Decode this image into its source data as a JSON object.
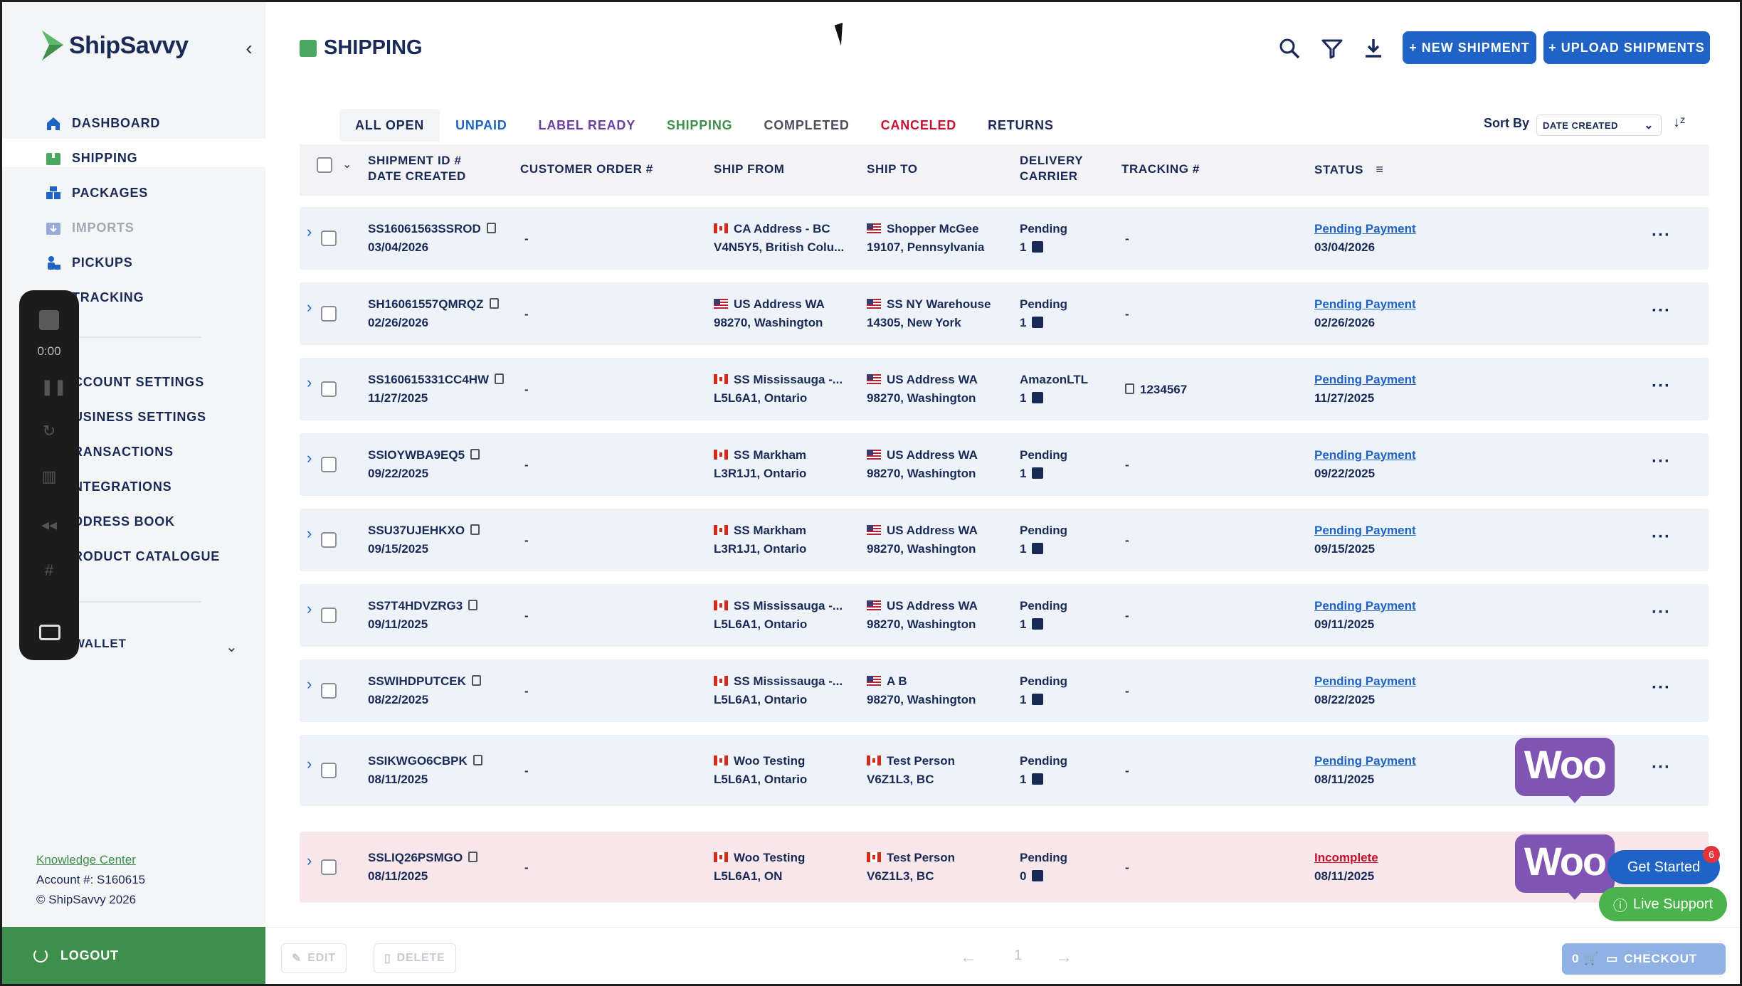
{
  "brand": {
    "name": "ShipSavvy"
  },
  "sidebar": {
    "collapse_icon": "chevron-left-icon",
    "items": [
      {
        "label": "DASHBOARD",
        "icon": "home-icon"
      },
      {
        "label": "SHIPPING",
        "icon": "box-icon"
      },
      {
        "label": "PACKAGES",
        "icon": "packages-icon"
      },
      {
        "label": "IMPORTS",
        "icon": "import-icon"
      },
      {
        "label": "PICKUPS",
        "icon": "pickup-icon"
      },
      {
        "label": "TRACKING",
        "icon": "tracking-icon"
      }
    ],
    "settings": [
      {
        "label": "CCOUNT SETTINGS"
      },
      {
        "label": "USINESS SETTINGS"
      },
      {
        "label": "RANSACTIONS"
      },
      {
        "label": "NTEGRATIONS"
      },
      {
        "label": "DDRESS BOOK"
      },
      {
        "label": "RODUCT CATALOGUE"
      }
    ],
    "wallet": "WALLET",
    "knowledge_center": "Knowledge Center",
    "account": "Account #: S160615",
    "copyright": "© ShipSavvy 2026",
    "logout": "LOGOUT"
  },
  "recorder": {
    "time": "0:00"
  },
  "header": {
    "title": "SHIPPING",
    "new_shipment": "+ NEW SHIPMENT",
    "upload_shipments": "+ UPLOAD SHIPMENTS"
  },
  "tabs": [
    {
      "label": "ALL OPEN",
      "color": "#1a2a57"
    },
    {
      "label": "UNPAID",
      "color": "#1f63c6"
    },
    {
      "label": "LABEL READY",
      "color": "#6b3fa6"
    },
    {
      "label": "SHIPPING",
      "color": "#3f8f4c"
    },
    {
      "label": "COMPLETED",
      "color": "#4a4f5c"
    },
    {
      "label": "CANCELED",
      "color": "#c8102e"
    },
    {
      "label": "RETURNS",
      "color": "#1a2a57"
    }
  ],
  "sort": {
    "label": "Sort By",
    "value": "DATE CREATED"
  },
  "columns": {
    "shipment_id": "SHIPMENT ID #",
    "date_created": "DATE CREATED",
    "customer_order": "CUSTOMER ORDER #",
    "ship_from": "SHIP FROM",
    "ship_to": "SHIP TO",
    "delivery": "DELIVERY",
    "carrier": "CARRIER",
    "tracking": "TRACKING #",
    "status": "STATUS"
  },
  "rows": [
    {
      "id": "SS16061563SSROD",
      "date": "03/04/2026",
      "order": "-",
      "from_flag": "ca",
      "from_name": "CA Address - BC",
      "from_sub": "V4N5Y5, British Colu...",
      "to_flag": "us",
      "to_name": "Shopper McGee",
      "to_sub": "19107, Pennsylvania",
      "carrier": "Pending",
      "pkgs": "1",
      "tracking": "-",
      "status": "Pending Payment",
      "status_date": "03/04/2026",
      "woo": false,
      "error": false
    },
    {
      "id": "SH16061557QMRQZ",
      "date": "02/26/2026",
      "order": "-",
      "from_flag": "us",
      "from_name": "US Address WA",
      "from_sub": "98270, Washington",
      "to_flag": "us",
      "to_name": "SS NY Warehouse",
      "to_sub": "14305, New York",
      "carrier": "Pending",
      "pkgs": "1",
      "tracking": "-",
      "status": "Pending Payment",
      "status_date": "02/26/2026",
      "woo": false,
      "error": false
    },
    {
      "id": "SS160615331CC4HW",
      "date": "11/27/2025",
      "order": "-",
      "from_flag": "ca",
      "from_name": "SS Mississauga -...",
      "from_sub": "L5L6A1, Ontario",
      "to_flag": "us",
      "to_name": "US Address WA",
      "to_sub": "98270, Washington",
      "carrier": "AmazonLTL",
      "pkgs": "1",
      "tracking": "1234567",
      "status": "Pending Payment",
      "status_date": "11/27/2025",
      "woo": false,
      "error": false
    },
    {
      "id": "SSIOYWBA9EQ5",
      "date": "09/22/2025",
      "order": "-",
      "from_flag": "ca",
      "from_name": "SS Markham",
      "from_sub": "L3R1J1, Ontario",
      "to_flag": "us",
      "to_name": "US Address WA",
      "to_sub": "98270, Washington",
      "carrier": "Pending",
      "pkgs": "1",
      "tracking": "-",
      "status": "Pending Payment",
      "status_date": "09/22/2025",
      "woo": false,
      "error": false
    },
    {
      "id": "SSU37UJEHKXO",
      "date": "09/15/2025",
      "order": "-",
      "from_flag": "ca",
      "from_name": "SS Markham",
      "from_sub": "L3R1J1, Ontario",
      "to_flag": "us",
      "to_name": "US Address WA",
      "to_sub": "98270, Washington",
      "carrier": "Pending",
      "pkgs": "1",
      "tracking": "-",
      "status": "Pending Payment",
      "status_date": "09/15/2025",
      "woo": false,
      "error": false
    },
    {
      "id": "SS7T4HDVZRG3",
      "date": "09/11/2025",
      "order": "-",
      "from_flag": "ca",
      "from_name": "SS Mississauga -...",
      "from_sub": "L5L6A1, Ontario",
      "to_flag": "us",
      "to_name": "US Address WA",
      "to_sub": "98270, Washington",
      "carrier": "Pending",
      "pkgs": "1",
      "tracking": "-",
      "status": "Pending Payment",
      "status_date": "09/11/2025",
      "woo": false,
      "error": false
    },
    {
      "id": "SSWIHDPUTCEK",
      "date": "08/22/2025",
      "order": "-",
      "from_flag": "ca",
      "from_name": "SS Mississauga -...",
      "from_sub": "L5L6A1, Ontario",
      "to_flag": "us",
      "to_name": "A B",
      "to_sub": "98270, Washington",
      "carrier": "Pending",
      "pkgs": "1",
      "tracking": "-",
      "status": "Pending Payment",
      "status_date": "08/22/2025",
      "woo": false,
      "error": false
    },
    {
      "id": "SSIKWGO6CBPK",
      "date": "08/11/2025",
      "order": "-",
      "from_flag": "ca",
      "from_name": "Woo Testing",
      "from_sub": "L5L6A1, Ontario",
      "to_flag": "ca",
      "to_name": "Test Person",
      "to_sub": "V6Z1L3, BC",
      "carrier": "Pending",
      "pkgs": "1",
      "tracking": "-",
      "status": "Pending Payment",
      "status_date": "08/11/2025",
      "woo": true,
      "error": false
    },
    {
      "id": "SSLIQ26PSMGO",
      "date": "08/11/2025",
      "order": "-",
      "from_flag": "ca",
      "from_name": "Woo Testing",
      "from_sub": "L5L6A1, ON",
      "to_flag": "ca",
      "to_name": "Test Person",
      "to_sub": "V6Z1L3, BC",
      "carrier": "Pending",
      "pkgs": "0",
      "tracking": "-",
      "status": "Incomplete",
      "status_date": "08/11/2025",
      "woo": true,
      "error": true
    }
  ],
  "woo_label": "Woo",
  "bottom": {
    "edit": "EDIT",
    "delete": "DELETE",
    "page": "1",
    "cart_count": "0",
    "checkout": "CHECKOUT"
  },
  "widgets": {
    "get_started": "Get Started",
    "badge": "6",
    "live_support": "Live Support"
  }
}
